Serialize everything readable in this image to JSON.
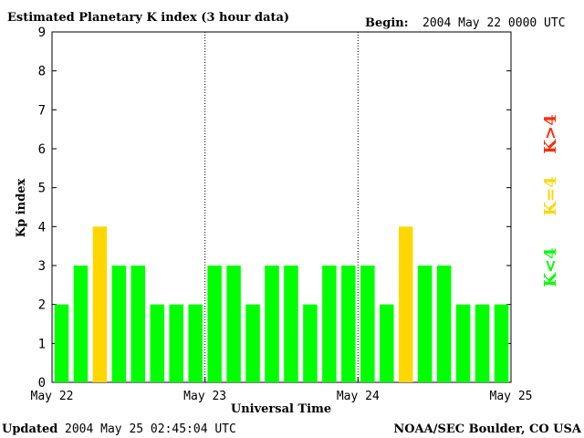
{
  "header": {
    "title": "Estimated Planetary K index (3 hour data)",
    "begin_label": "Begin:",
    "begin_value": "2004 May 22 0000 UTC"
  },
  "footer": {
    "updated_label": "Updated",
    "updated_value": "2004 May 25 02:45:04 UTC",
    "source": "NOAA/SEC Boulder, CO USA"
  },
  "legend": {
    "low": "K<4",
    "mid": "K=4",
    "high": "K>4"
  },
  "colors": {
    "low": "#00ff00",
    "mid": "#ffd700",
    "high": "#ff2a00",
    "axis": "#000000"
  },
  "chart_data": {
    "type": "bar",
    "title": "Estimated Planetary K index (3 hour data)",
    "xlabel": "Universal Time",
    "ylabel": "Kp index",
    "ylim": [
      0,
      9
    ],
    "yticks": [
      "0",
      "1",
      "2",
      "3",
      "4",
      "5",
      "6",
      "7",
      "8",
      "9"
    ],
    "xticks": [
      "May 22",
      "May 23",
      "May 24",
      "May 25"
    ],
    "day_separators": [
      "May 23",
      "May 24"
    ],
    "bars_per_day": 8,
    "values": [
      2,
      3,
      4,
      3,
      3,
      2,
      2,
      2,
      3,
      3,
      2,
      3,
      3,
      2,
      3,
      3,
      3,
      2,
      4,
      3,
      3,
      2,
      2,
      2
    ]
  }
}
